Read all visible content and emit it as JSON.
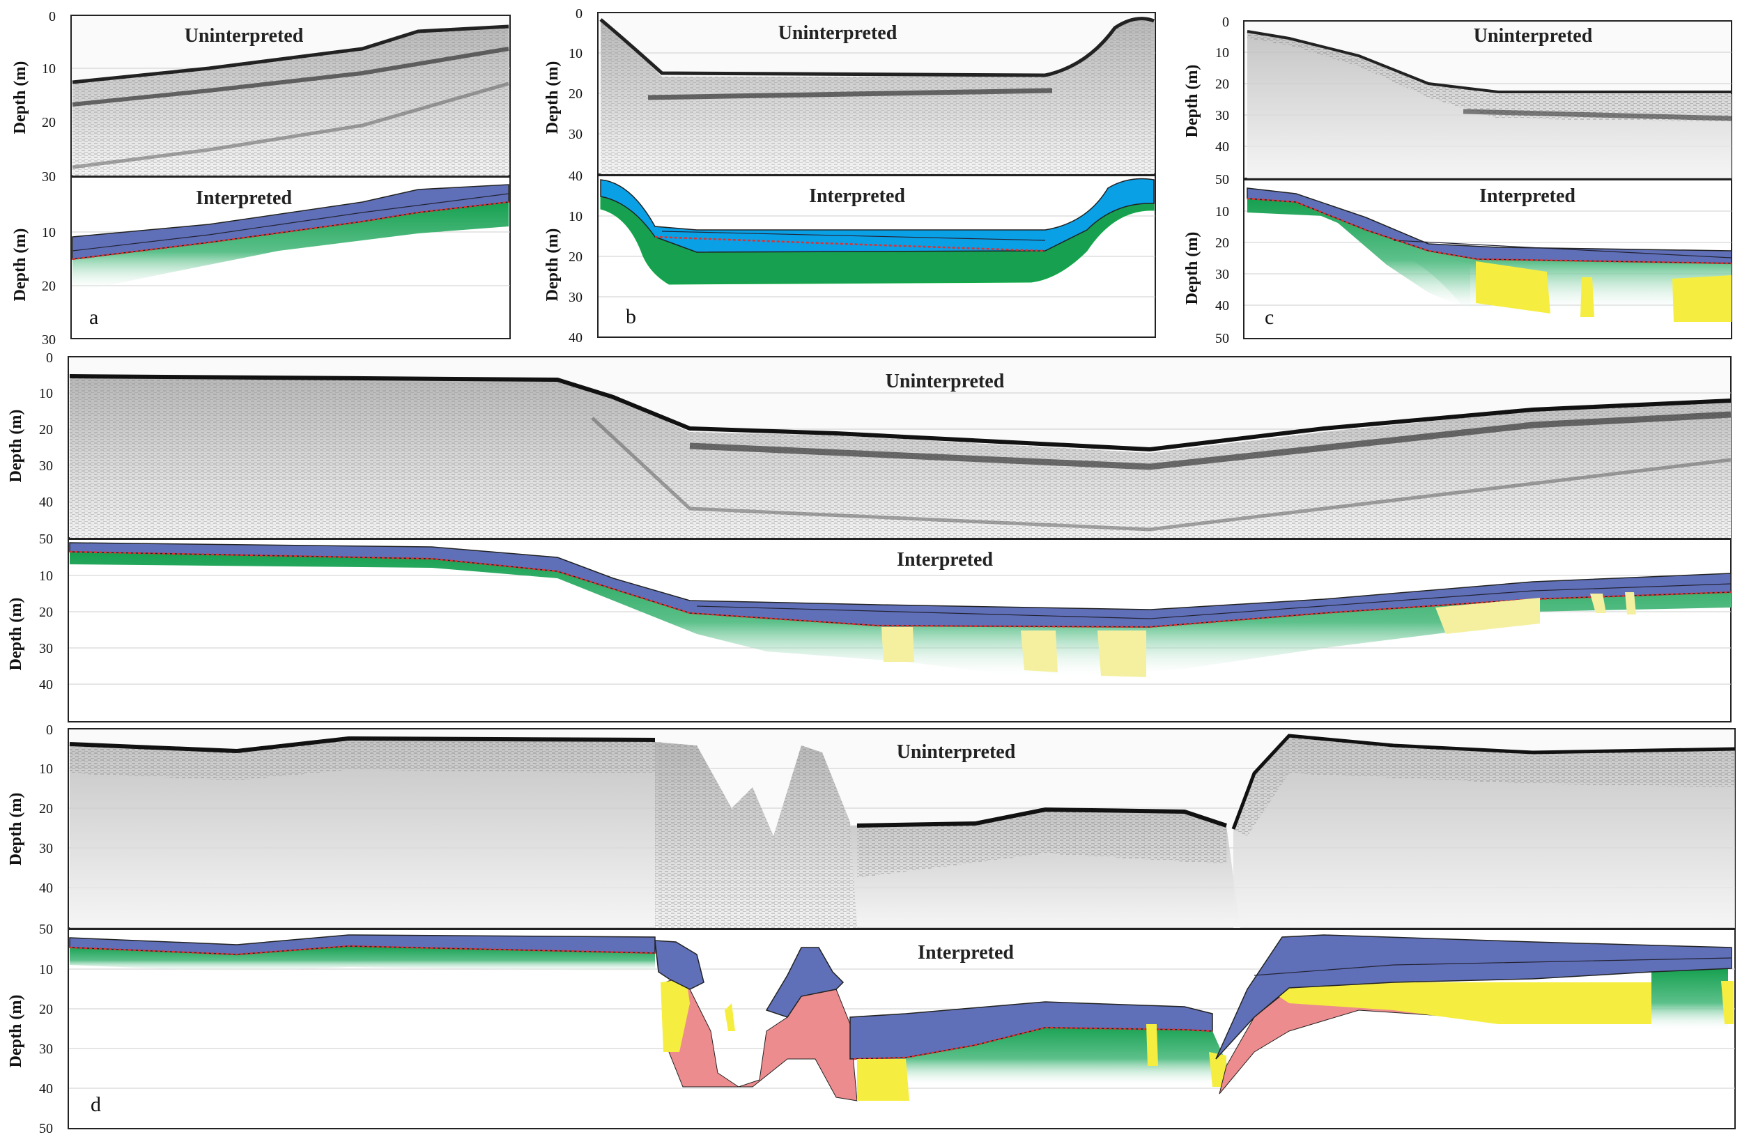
{
  "figure": {
    "y_axis_label": "Depth (m)",
    "uninterpreted_label": "Uninterpreted",
    "interpreted_label": "Interpreted",
    "colors": {
      "holocene_unit": "#6070b8",
      "lake_unit": "#0aa0e6",
      "green_unit": "#16a050",
      "yellow_unit": "#f5ee40",
      "pale_yellow_unit": "#f5f0a0",
      "pink_unit": "#ec8c8e",
      "boundary_line": "#e03030"
    },
    "panels": [
      {
        "letter": "a",
        "uninterpreted_ticks": [
          "0",
          "10",
          "20",
          "30"
        ],
        "interpreted_ticks": [
          "30",
          "10",
          "20",
          "30"
        ]
      },
      {
        "letter": "b",
        "uninterpreted_ticks": [
          "0",
          "10",
          "20",
          "30",
          "40"
        ],
        "interpreted_ticks": [
          "40",
          "10",
          "20",
          "30",
          "40"
        ]
      },
      {
        "letter": "c",
        "uninterpreted_ticks": [
          "0",
          "10",
          "20",
          "30",
          "40",
          "50"
        ],
        "interpreted_ticks": [
          "50",
          "10",
          "20",
          "30",
          "40",
          "50"
        ]
      },
      {
        "letter": "",
        "uninterpreted_ticks": [
          "0",
          "10",
          "20",
          "30",
          "40",
          "50"
        ],
        "interpreted_ticks": [
          "50",
          "10",
          "20",
          "30",
          "40"
        ]
      },
      {
        "letter": "d",
        "uninterpreted_ticks": [
          "0",
          "10",
          "20",
          "30",
          "40",
          "50"
        ],
        "interpreted_ticks": [
          "50",
          "10",
          "20",
          "30",
          "40",
          "50"
        ]
      }
    ]
  }
}
